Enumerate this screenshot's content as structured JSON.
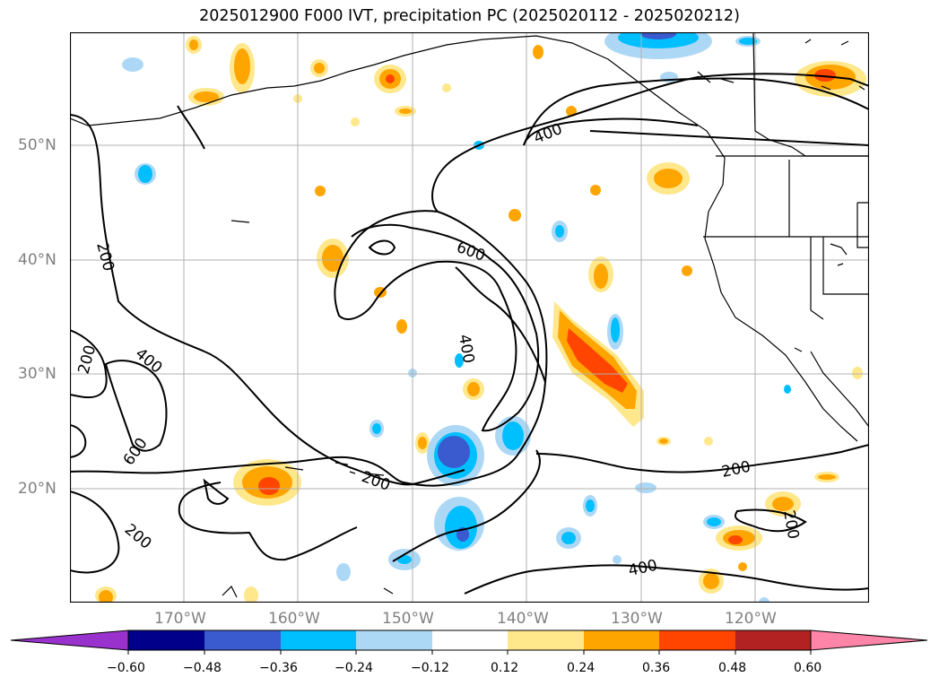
{
  "title": "2025012900 F000 IVT, precipitation PC (2025020112 - 2025020212)",
  "map": {
    "lat_labels": [
      "50°N",
      "40°N",
      "30°N",
      "20°N"
    ],
    "lon_labels": [
      "170°W",
      "160°W",
      "150°W",
      "140°W",
      "130°W",
      "120°W"
    ],
    "contour_labels": [
      "200",
      "400",
      "600"
    ],
    "gridlines": true
  },
  "colorbar": {
    "orientation": "horizontal",
    "extend": "both",
    "ticks": [
      "−0.60",
      "−0.48",
      "−0.36",
      "−0.24",
      "−0.12",
      "0.12",
      "0.24",
      "0.36",
      "0.48",
      "0.60"
    ],
    "colors": [
      "#9932cc",
      "#00008b",
      "#3a5bcf",
      "#00bfff",
      "#add8f5",
      "#ffffff",
      "#ffe78c",
      "#ffa500",
      "#ff4500",
      "#b22222",
      "#ff85a8"
    ]
  }
}
